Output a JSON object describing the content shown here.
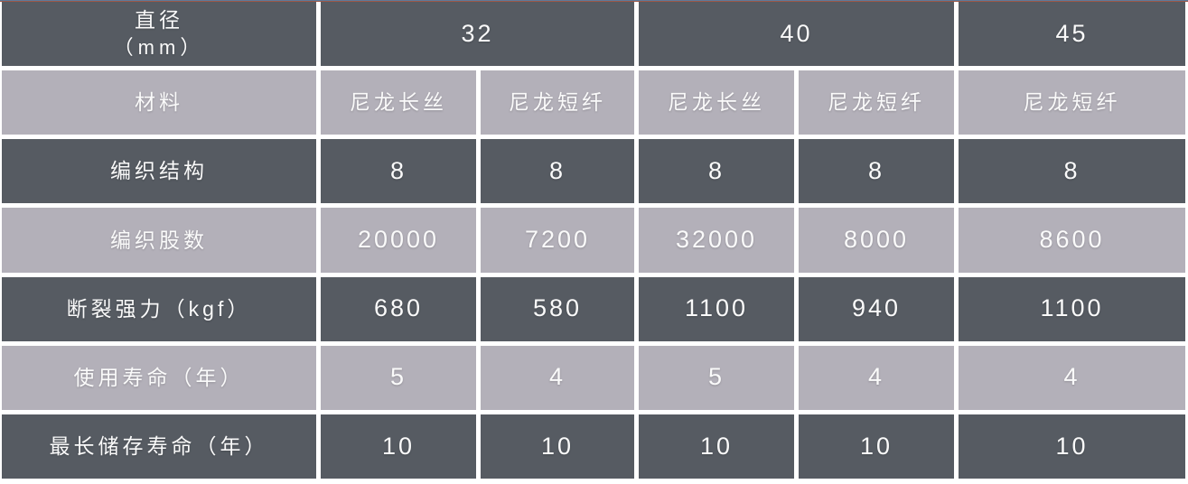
{
  "colors": {
    "dark_cell": "#565b62",
    "light_cell": "#b3b0b9",
    "text_color": "#fafafa",
    "gap_color": "#ffffff",
    "top_line_blue": "#5d7a9b",
    "top_line_red": "#9a5848"
  },
  "table": {
    "header": {
      "label_line1": "直径",
      "label_line2": "（mm）",
      "groups": [
        {
          "value": "32",
          "span": 2
        },
        {
          "value": "40",
          "span": 2
        },
        {
          "value": "45",
          "span": 1
        }
      ]
    },
    "rows": [
      {
        "label": "材料",
        "tone": "light",
        "cells": [
          "尼龙长丝",
          "尼龙短纤",
          "尼龙长丝",
          "尼龙短纤",
          "尼龙短纤"
        ]
      },
      {
        "label": "编织结构",
        "tone": "dark",
        "cells": [
          "8",
          "8",
          "8",
          "8",
          "8"
        ]
      },
      {
        "label": "编织股数",
        "tone": "light",
        "cells": [
          "20000",
          "7200",
          "32000",
          "8000",
          "8600"
        ]
      },
      {
        "label": "断裂强力（kgf）",
        "tone": "dark",
        "cells": [
          "680",
          "580",
          "1100",
          "940",
          "1100"
        ]
      },
      {
        "label": "使用寿命（年）",
        "tone": "light",
        "cells": [
          "5",
          "4",
          "5",
          "4",
          "4"
        ]
      },
      {
        "label": "最长储存寿命（年）",
        "tone": "dark",
        "cells": [
          "10",
          "10",
          "10",
          "10",
          "10"
        ]
      }
    ]
  }
}
